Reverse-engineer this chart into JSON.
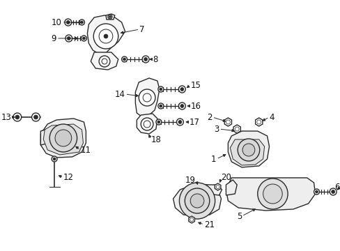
{
  "bg_color": "#ffffff",
  "line_color": "#2a2a2a",
  "text_color": "#111111",
  "font_size": 8.5,
  "label_font_size": 8.5,
  "lw": 1.0,
  "fig_w": 4.89,
  "fig_h": 3.6,
  "dpi": 100
}
